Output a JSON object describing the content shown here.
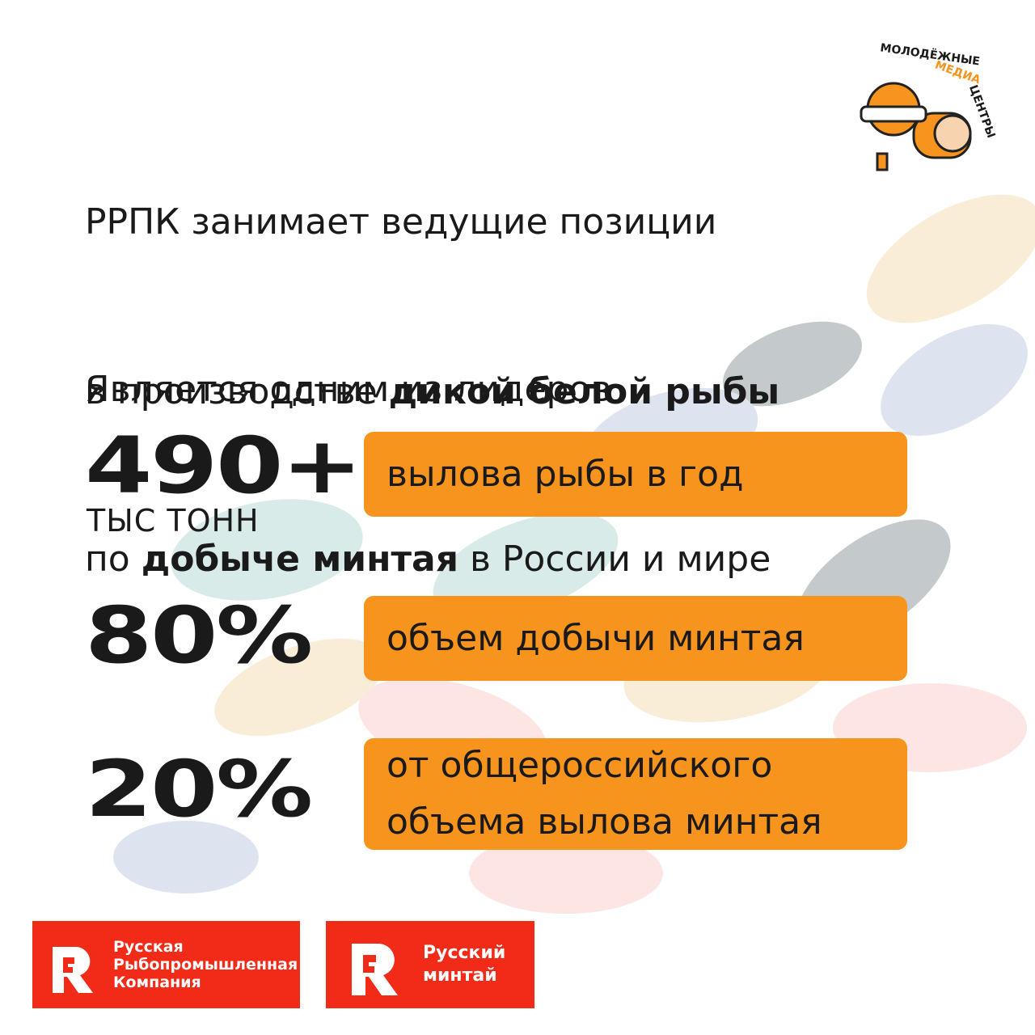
{
  "logo": {
    "line1": "МОЛОДЁЖНЫЕ",
    "line2": "МЕДИА",
    "line3": "ЦЕНТРЫ"
  },
  "headline1": {
    "line1": "РРПК занимает ведущие позиции",
    "line2_plain": "в производстве ",
    "line2_bold": "дикой белой рыбы"
  },
  "headline2": {
    "line1": "Является одним из лидеров",
    "line2_plain": "по ",
    "line2_bold": "добыче минтая",
    "line2_end": " в России и мире"
  },
  "stats": [
    {
      "value": "490+",
      "unit": "ТЫС ТОНН",
      "lines": [
        "вылова рыбы в год"
      ]
    },
    {
      "value": "80%",
      "lines": [
        "объем добычи минтая"
      ]
    },
    {
      "value": "20%",
      "lines": [
        "от общероссийского",
        "объема вылова минтая"
      ]
    }
  ],
  "footer_logos": [
    {
      "lines": [
        "Русская",
        "Рыбопромышленная",
        "Компания"
      ]
    },
    {
      "lines": [
        "Русский",
        "минтай"
      ]
    }
  ]
}
